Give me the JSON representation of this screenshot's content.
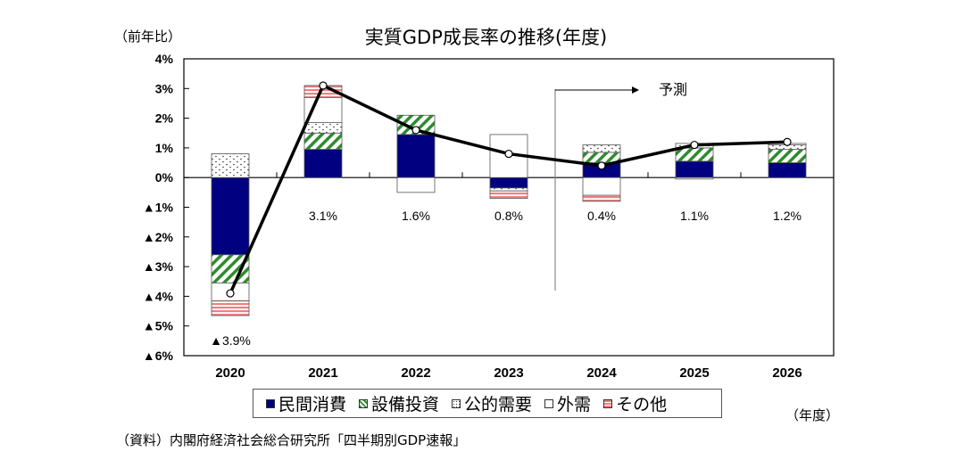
{
  "title": "実質GDP成長率の推移(年度)",
  "y_unit_label": "（前年比）",
  "x_unit_label": "（年度）",
  "source": "（資料）内閣府経済社会総合研究所「四半期別GDP速報」",
  "forecast_label": "予測",
  "colors": {
    "private": "#000080",
    "capex": "#2e8b2e",
    "public": "#ffffff",
    "external": "#ffffff",
    "other": "#f08080",
    "line": "#000000"
  },
  "chart_data": {
    "type": "bar",
    "title": "実質GDP成長率の推移(年度)",
    "xlabel": "（年度）",
    "ylabel": "（前年比）",
    "ylim": [
      -6,
      4
    ],
    "yticks": [
      4,
      3,
      2,
      1,
      0,
      -1,
      -2,
      -3,
      -4,
      -5,
      -6
    ],
    "ytick_labels": [
      "4%",
      "3%",
      "2%",
      "1%",
      "0%",
      "▲1%",
      "▲2%",
      "▲3%",
      "▲4%",
      "▲5%",
      "▲6%"
    ],
    "categories": [
      "2020",
      "2021",
      "2022",
      "2023",
      "2024",
      "2025",
      "2026"
    ],
    "stacked": true,
    "series": [
      {
        "key": "private",
        "name": "民間消費",
        "values": [
          -2.6,
          0.95,
          1.45,
          -0.35,
          0.5,
          0.55,
          0.5
        ]
      },
      {
        "key": "capex",
        "name": "設備投資",
        "values": [
          -0.95,
          0.55,
          0.65,
          0.0,
          0.35,
          0.45,
          0.45
        ]
      },
      {
        "key": "public",
        "name": "公的需要",
        "values": [
          0.8,
          0.35,
          0.0,
          -0.1,
          0.25,
          0.15,
          0.15
        ]
      },
      {
        "key": "external",
        "name": "外需",
        "values": [
          -0.6,
          0.85,
          -0.5,
          1.45,
          -0.6,
          -0.05,
          0.05
        ]
      },
      {
        "key": "other",
        "name": "その他",
        "values": [
          -0.5,
          0.4,
          0.0,
          -0.25,
          -0.2,
          0.0,
          0.0
        ]
      }
    ],
    "line": {
      "name": "実質GDP成長率",
      "values": [
        -3.9,
        3.1,
        1.6,
        0.8,
        0.4,
        1.1,
        1.2
      ]
    },
    "data_labels": [
      "▲3.9%",
      "3.1%",
      "1.6%",
      "0.8%",
      "0.4%",
      "1.1%",
      "1.2%"
    ],
    "forecast_start_after": "2023",
    "legend_position": "bottom"
  }
}
